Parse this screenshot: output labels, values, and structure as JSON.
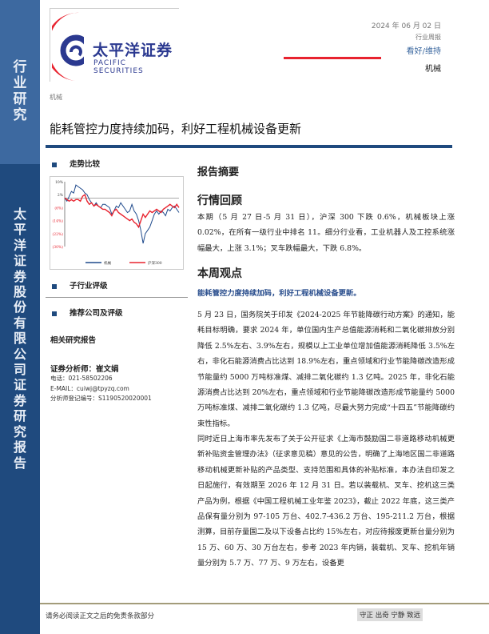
{
  "sidebar": {
    "top_text": "行业研究",
    "bottom_text": "太平洋证券股份有限公司证券研究报告"
  },
  "logo": {
    "cn": "太平洋证券",
    "en": "PACIFIC SECURITIES"
  },
  "header": {
    "date": "2024 年 06 月 02 日",
    "report_type": "行业周报",
    "rating": "看好/维持",
    "industry": "机械"
  },
  "category": "机械",
  "title": "能耗管控力度持续加码，利好工程机械设备更新",
  "left": {
    "trend_title": "走势比较",
    "sub_rating_title": "子行业评级",
    "recommend_title": "推荐公司及评级",
    "related_title": "相关研究报告",
    "analyst": {
      "name_line": "证券分析师：崔文娟",
      "phone": "电话：021-58502206",
      "email": "E-MAIL：cuiwj@tpyzq.com",
      "license": "分析师登记编号：S1190520020001"
    }
  },
  "chart_data": {
    "type": "line",
    "yticks": [
      "10%",
      "2%",
      "(6%)",
      "(14%)",
      "(22%)",
      "(30%)"
    ],
    "ylim": [
      -30,
      10
    ],
    "colors": {
      "机械": "#1f4a8c",
      "沪深300": "#e8232f"
    },
    "legend_position": "bottom",
    "series": [
      {
        "name": "机械",
        "values": [
          0,
          -2,
          1,
          4,
          3,
          8,
          7,
          6,
          5,
          3,
          2,
          -1,
          -3,
          -5,
          -3,
          -5,
          -6,
          -4,
          -4,
          -5,
          -6,
          -10,
          -8,
          -5,
          -6,
          -3,
          -5,
          -7,
          -9,
          -8,
          -4,
          -8,
          -10,
          -14,
          -20,
          -28,
          -22,
          -20,
          -18,
          -14,
          -10,
          -8,
          -10,
          -8,
          -9,
          -11,
          -7,
          -8,
          -6,
          -5,
          -7,
          -9
        ]
      },
      {
        "name": "沪深300",
        "values": [
          0,
          -1,
          -2,
          -1,
          -2,
          -1,
          -1,
          -2,
          1,
          2,
          -2,
          -4,
          -3,
          -5,
          -4,
          -5,
          -6,
          -7,
          -7,
          -8,
          -9,
          -11,
          -8,
          -7,
          -9,
          -10,
          -11,
          -12,
          -13,
          -14,
          -13,
          -15,
          -16,
          -18,
          -14,
          -10,
          -12,
          -10,
          -8,
          -9,
          -8,
          -7,
          -8,
          -9,
          -7,
          -6,
          -5,
          -4,
          -5,
          -6,
          -4,
          -6
        ]
      }
    ]
  },
  "main": {
    "summary_title": "报告摘要",
    "review_title": "行情回顾",
    "review_text": "本期（5 月 27 日-5 月 31 日），沪深 300 下跌 0.6%，机械板块上涨 0.02%，在所有一级行业中排名 11。细分行业看，工业机器人及工控系统涨幅最大，上涨 3.1%；叉车跌幅最大，下跌 6.8%。",
    "view_title": "本周观点",
    "view_subtitle": "能耗管控力度持续加码，利好工程机械设备更新。",
    "para1": "5 月 23 日，国务院关于印发《2024-2025 年节能降碳行动方案》的通知，能耗目标明确，要求 2024 年，单位国内生产总值能源消耗和二氧化碳排放分别降低 2.5%左右、3.9%左右，规模以上工业单位增加值能源消耗降低 3.5%左右，非化石能源消费占比达到 18.9%左右，重点领域和行业节能降碳改造形成节能量约 5000 万吨标准煤、减排二氧化碳约 1.3 亿吨。2025 年，非化石能源消费占比达到 20%左右，重点领域和行业节能降碳改造形成节能量约 5000 万吨标准煤、减排二氧化碳约 1.3 亿吨，尽最大努力完成“十四五”节能降碳约束性指标。",
    "para2": "同时近日上海市率先发布了关于公开征求《上海市鼓励国二非道路移动机械更新补贴资金管理办法》（征求意见稿）意见的公告，明确了上海地区国二非道路移动机械更新补贴的产品类型、支持范围和具体的补贴标准，本办法自印发之日起施行，有效期至 2026 年 12 月 31 日。若以装载机、叉车、挖机这三类产品为例，根据《中国工程机械工业年鉴 2023》，截止 2022 年底，这三类产品保有量分别为 97-105 万台、402.7-436.2 万台、195-211.2 万台，根据测算，目前存量国二及以下设备占比约 15%左右，对应待报废更新台量分别为 15 万、60 万、30 万台左右，参考 2023 年内销，装载机、叉车、挖机年销量分别为 5.7 万、77 万、9 万左右，设备更"
  },
  "footer": {
    "disclaimer": "请务必阅读正文之后的免责条款部分",
    "slogan": "守正 出奇 宁静 致远"
  }
}
